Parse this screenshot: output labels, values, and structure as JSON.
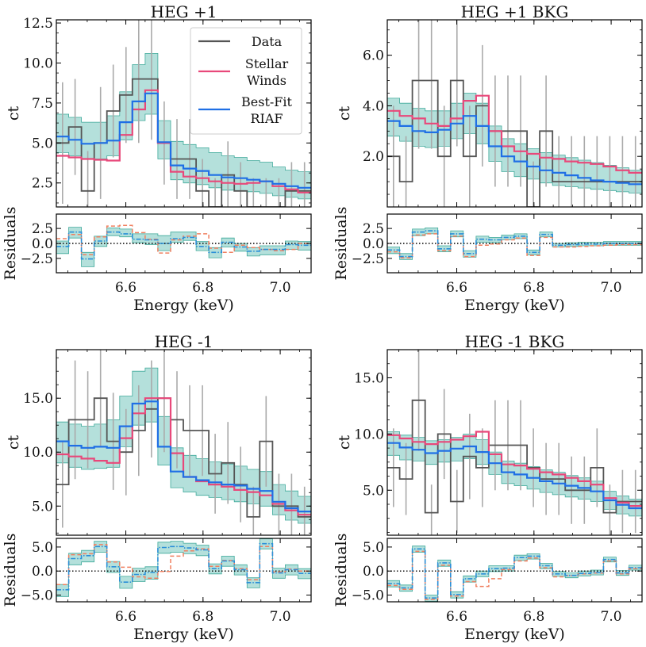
{
  "chart_data": [
    {
      "type": "line",
      "title": "HEG +1",
      "xlabel": "Energy (keV)",
      "ylabel": "ct",
      "residuals_ylabel": "Residuals",
      "xlim": [
        6.42,
        7.08
      ],
      "ylim": [
        1.0,
        12.7
      ],
      "residuals_ylim": [
        -4.9,
        4.9
      ],
      "xticks": [
        6.6,
        6.8,
        7.0
      ],
      "yticks": [
        2.5,
        5.0,
        7.5,
        10.0,
        12.5
      ],
      "yticklabels": [
        "2.5",
        "5.0",
        "7.5",
        "10.0",
        "12.5"
      ],
      "residuals_yticks": [
        -2.5,
        0.0,
        2.5
      ],
      "residuals_yticklabels": [
        "−2.5",
        "0.0",
        "2.5"
      ],
      "bin_edges": [
        6.42,
        6.452,
        6.485,
        6.518,
        6.551,
        6.584,
        6.617,
        6.65,
        6.683,
        6.716,
        6.749,
        6.782,
        6.815,
        6.848,
        6.881,
        6.914,
        6.947,
        6.98,
        7.013,
        7.046,
        7.08
      ],
      "data_counts": [
        5,
        6,
        2,
        5,
        7,
        8,
        9,
        9,
        5,
        4,
        4,
        2,
        1,
        3,
        2,
        1,
        1,
        1,
        2,
        2
      ],
      "data_errors": [
        3.8,
        3.0,
        2.5,
        3.5,
        2.9,
        3.0,
        4.0,
        3.8,
        2.6,
        2.5,
        2.5,
        2.0,
        1.8,
        2.1,
        1.8,
        1.8,
        1.8,
        1.8,
        1.8,
        1.8
      ],
      "stellar_winds": [
        4.2,
        4.1,
        4.0,
        3.95,
        3.9,
        5.5,
        7.1,
        8.3,
        5.0,
        3.2,
        2.9,
        2.8,
        2.6,
        2.5,
        2.45,
        2.5,
        2.6,
        2.3,
        2.1,
        1.9
      ],
      "riaf": [
        5.4,
        5.2,
        4.95,
        5.0,
        5.15,
        6.3,
        7.6,
        8.1,
        5.05,
        3.6,
        3.4,
        3.25,
        3.0,
        2.85,
        2.8,
        2.7,
        2.6,
        2.45,
        2.3,
        2.2
      ],
      "band_lower": [
        4.4,
        4.2,
        4.0,
        4.0,
        4.2,
        5.2,
        6.4,
        6.8,
        4.0,
        2.7,
        2.5,
        2.4,
        2.2,
        2.05,
        2.0,
        1.95,
        1.85,
        1.7,
        1.6,
        1.5
      ],
      "band_upper": [
        6.8,
        6.6,
        6.3,
        6.3,
        6.7,
        8.2,
        9.9,
        10.6,
        6.4,
        5.1,
        4.9,
        4.7,
        4.4,
        4.2,
        4.1,
        3.9,
        3.8,
        3.5,
        3.3,
        3.2
      ],
      "res_riaf": [
        -0.5,
        1.9,
        -2.6,
        0.4,
        1.9,
        1.6,
        0.7,
        0.6,
        0.0,
        0.8,
        1.0,
        -0.5,
        -1.5,
        0.2,
        -0.6,
        -1.3,
        -1.0,
        -1.0,
        -0.2,
        -0.3
      ],
      "res_winds": [
        0.8,
        1.5,
        -1.9,
        1.1,
        2.9,
        3.0,
        1.8,
        0.7,
        -1.6,
        0.6,
        1.2,
        1.6,
        -0.8,
        -1.5,
        -0.3,
        -0.7,
        -1.0,
        -1.2,
        -1.0,
        0.0
      ],
      "res_band_lower": [
        -1.2,
        -1.0,
        -1.3,
        -0.9,
        -0.6,
        -0.5,
        -0.6,
        -0.8,
        -1.2,
        -0.6,
        -0.5,
        -0.7,
        -0.9,
        -0.8,
        -0.7,
        -0.8,
        -0.9,
        -0.9,
        -0.8,
        -0.8
      ],
      "res_band_upper": [
        0.9,
        0.8,
        1.1,
        0.8,
        0.7,
        0.8,
        0.9,
        1.0,
        1.3,
        1.1,
        0.9,
        0.8,
        0.8,
        0.7,
        0.6,
        0.6,
        0.6,
        0.6,
        0.6,
        0.6
      ],
      "legend": {
        "position": "top-right",
        "entries": [
          "Data",
          "Stellar\nWinds",
          "Best-Fit\nRIAF"
        ]
      }
    },
    {
      "type": "line",
      "title": "HEG +1 BKG",
      "xlabel": "Energy (keV)",
      "ylabel": "ct",
      "residuals_ylabel": "Residuals",
      "xlim": [
        6.42,
        7.08
      ],
      "ylim": [
        0.0,
        7.4
      ],
      "residuals_ylim": [
        -4.9,
        4.9
      ],
      "xticks": [
        6.6,
        6.8,
        7.0
      ],
      "yticks": [
        2.0,
        4.0,
        6.0
      ],
      "yticklabels": [
        "2.0",
        "4.0",
        "6.0"
      ],
      "residuals_yticks": [
        -2.5,
        0.0,
        2.5
      ],
      "residuals_yticklabels": [
        "−2.5",
        "0.0",
        "2.5"
      ],
      "bin_edges": [
        6.42,
        6.452,
        6.485,
        6.518,
        6.551,
        6.584,
        6.617,
        6.65,
        6.683,
        6.716,
        6.749,
        6.782,
        6.815,
        6.848,
        6.881,
        6.914,
        6.947,
        6.98,
        7.013,
        7.046,
        7.08
      ],
      "data_counts": [
        2,
        1,
        5,
        5,
        2,
        5,
        2,
        4,
        3,
        3,
        3,
        0,
        3,
        1,
        1,
        1,
        1,
        1,
        1,
        1
      ],
      "data_errors": [
        2.0,
        1.8,
        2.7,
        2.7,
        2.0,
        2.6,
        2.0,
        2.4,
        2.2,
        2.2,
        2.2,
        1.8,
        2.2,
        1.8,
        1.8,
        1.8,
        1.8,
        1.8,
        1.8,
        1.8
      ],
      "stellar_winds": [
        3.8,
        3.6,
        3.5,
        3.3,
        3.2,
        3.5,
        4.2,
        4.4,
        3.0,
        2.4,
        2.2,
        2.1,
        1.95,
        1.9,
        1.8,
        1.75,
        1.7,
        1.6,
        1.45,
        1.35
      ],
      "riaf": [
        3.4,
        3.2,
        3.0,
        2.95,
        3.05,
        3.3,
        3.6,
        3.2,
        2.4,
        2.0,
        1.8,
        1.6,
        1.45,
        1.35,
        1.25,
        1.15,
        1.05,
        1.0,
        0.95,
        0.9
      ],
      "band_lower": [
        2.8,
        2.6,
        2.4,
        2.35,
        2.4,
        2.7,
        2.9,
        2.5,
        1.8,
        1.4,
        1.2,
        1.1,
        0.95,
        0.85,
        0.8,
        0.75,
        0.7,
        0.65,
        0.6,
        0.55
      ],
      "band_upper": [
        4.3,
        4.1,
        3.9,
        3.8,
        3.8,
        4.1,
        4.5,
        4.1,
        3.2,
        2.7,
        2.5,
        2.3,
        2.15,
        2.05,
        1.95,
        1.85,
        1.75,
        1.65,
        1.55,
        1.45
      ],
      "res_riaf": [
        -1.1,
        -2.2,
        1.9,
        2.1,
        -0.9,
        1.6,
        -1.7,
        0.7,
        0.6,
        1.0,
        1.2,
        -1.5,
        1.5,
        -0.3,
        -0.2,
        -0.1,
        -0.1,
        0.0,
        0.0,
        0.0
      ],
      "res_winds": [
        -1.4,
        -2.4,
        1.4,
        1.6,
        -1.2,
        1.2,
        -2.2,
        -0.3,
        -0.1,
        0.6,
        0.9,
        -2.0,
        1.0,
        -0.6,
        -0.6,
        -0.5,
        -0.4,
        -0.3,
        -0.2,
        -0.2
      ],
      "res_band_lower": [
        -0.6,
        -0.5,
        -0.6,
        -0.5,
        -0.5,
        -0.5,
        -0.6,
        -0.5,
        -0.5,
        -0.4,
        -0.4,
        -0.4,
        -0.4,
        -0.3,
        -0.3,
        -0.3,
        -0.3,
        -0.3,
        -0.3,
        -0.3
      ],
      "res_band_upper": [
        0.5,
        0.5,
        0.5,
        0.5,
        0.5,
        0.5,
        0.5,
        0.5,
        0.4,
        0.4,
        0.4,
        0.4,
        0.4,
        0.3,
        0.3,
        0.3,
        0.3,
        0.3,
        0.3,
        0.3
      ]
    },
    {
      "type": "line",
      "title": "HEG -1",
      "xlabel": "Energy (keV)",
      "ylabel": "ct",
      "residuals_ylabel": "Residuals",
      "xlim": [
        6.42,
        7.08
      ],
      "ylim": [
        2.3,
        19.5
      ],
      "residuals_ylim": [
        -6.4,
        6.8
      ],
      "xticks": [
        6.6,
        6.8,
        7.0
      ],
      "yticks": [
        5.0,
        10.0,
        15.0
      ],
      "yticklabels": [
        "5.0",
        "10.0",
        "15.0"
      ],
      "residuals_yticks": [
        -5.0,
        0.0,
        5.0
      ],
      "residuals_yticklabels": [
        "−5.0",
        "0.0",
        "5.0"
      ],
      "bin_edges": [
        6.42,
        6.452,
        6.485,
        6.518,
        6.551,
        6.584,
        6.617,
        6.65,
        6.683,
        6.716,
        6.749,
        6.782,
        6.815,
        6.848,
        6.881,
        6.914,
        6.947,
        6.98,
        7.013,
        7.046,
        7.08
      ],
      "data_counts": [
        7,
        13,
        13,
        15,
        11,
        10,
        12,
        14,
        15,
        13,
        12,
        12,
        8,
        9,
        7,
        4,
        11,
        5,
        5,
        4
      ],
      "data_errors": [
        4.0,
        5.5,
        4.5,
        4.5,
        4.5,
        4.0,
        4.2,
        4.5,
        5.0,
        4.5,
        4.2,
        4.2,
        3.7,
        3.8,
        3.5,
        2.8,
        4.2,
        3.0,
        3.0,
        2.8
      ],
      "stellar_winds": [
        9.8,
        9.6,
        9.4,
        9.2,
        9.0,
        11.3,
        13.6,
        15.0,
        15.0,
        9.9,
        7.7,
        7.3,
        7.0,
        6.8,
        6.5,
        6.3,
        6.0,
        5.2,
        4.6,
        4.2
      ],
      "riaf": [
        11.0,
        10.6,
        10.4,
        10.5,
        10.4,
        12.4,
        14.5,
        14.7,
        10.5,
        8.2,
        7.7,
        7.4,
        7.2,
        7.0,
        6.9,
        6.6,
        6.4,
        5.4,
        4.8,
        4.5
      ],
      "band_lower": [
        9.0,
        8.6,
        8.4,
        8.5,
        8.6,
        10.5,
        12.5,
        12.8,
        8.8,
        6.7,
        6.3,
        6.0,
        5.8,
        5.6,
        5.4,
        5.2,
        5.0,
        4.2,
        3.7,
        3.4
      ],
      "band_upper": [
        12.8,
        12.6,
        12.4,
        12.6,
        13.0,
        15.2,
        17.5,
        17.8,
        13.3,
        10.4,
        9.7,
        9.4,
        9.1,
        8.9,
        8.7,
        8.4,
        8.2,
        7.0,
        6.4,
        5.9
      ],
      "res_riaf": [
        -3.9,
        2.6,
        3.2,
        5.1,
        0.9,
        -2.3,
        -0.7,
        -0.3,
        4.9,
        5.1,
        4.8,
        4.4,
        0.5,
        2.1,
        0.3,
        -2.4,
        5.7,
        -0.4,
        0.3,
        -0.5
      ],
      "res_winds": [
        -2.8,
        3.4,
        3.6,
        5.5,
        1.9,
        0.8,
        -1.2,
        -1.5,
        -0.1,
        3.1,
        4.2,
        4.6,
        1.0,
        2.2,
        0.5,
        -1.8,
        5.1,
        -0.2,
        0.4,
        0.0
      ],
      "res_band_lower": [
        -1.4,
        -1.3,
        -1.3,
        -1.2,
        -1.2,
        -1.3,
        -1.5,
        -1.4,
        -1.2,
        -1.2,
        -1.2,
        -1.2,
        -1.1,
        -1.1,
        -1.1,
        -1.1,
        -1.1,
        -1.1,
        -1.1,
        -1.1
      ],
      "res_band_upper": [
        1.1,
        1.1,
        1.1,
        1.1,
        1.1,
        1.2,
        1.3,
        1.2,
        1.1,
        1.1,
        1.0,
        1.0,
        1.0,
        1.0,
        1.0,
        1.0,
        1.0,
        1.0,
        1.0,
        1.0
      ]
    },
    {
      "type": "line",
      "title": "HEG -1 BKG",
      "xlabel": "Energy (keV)",
      "ylabel": "ct",
      "residuals_ylabel": "Residuals",
      "xlim": [
        6.42,
        7.08
      ],
      "ylim": [
        1.0,
        17.5
      ],
      "residuals_ylim": [
        -6.4,
        6.8
      ],
      "xticks": [
        6.6,
        6.8,
        7.0
      ],
      "yticks": [
        5.0,
        10.0,
        15.0
      ],
      "yticklabels": [
        "5.0",
        "10.0",
        "15.0"
      ],
      "residuals_yticks": [
        -5.0,
        0.0,
        5.0
      ],
      "residuals_yticklabels": [
        "−5.0",
        "0.0",
        "5.0"
      ],
      "bin_edges": [
        6.42,
        6.452,
        6.485,
        6.518,
        6.551,
        6.584,
        6.617,
        6.65,
        6.683,
        6.716,
        6.749,
        6.782,
        6.815,
        6.848,
        6.881,
        6.914,
        6.947,
        6.98,
        7.013,
        7.046,
        7.08
      ],
      "data_counts": [
        7,
        6,
        13,
        3,
        10,
        4,
        8,
        7,
        9,
        9,
        9,
        7,
        6,
        6,
        5,
        5,
        7,
        3,
        4,
        4
      ],
      "data_errors": [
        3.5,
        3.2,
        4.5,
        2.5,
        4.0,
        2.8,
        3.8,
        3.5,
        4.0,
        4.0,
        4.0,
        3.5,
        3.2,
        3.2,
        3.0,
        3.0,
        3.5,
        2.5,
        2.8,
        2.8
      ],
      "stellar_winds": [
        9.9,
        9.6,
        9.3,
        9.1,
        9.3,
        9.5,
        9.8,
        10.2,
        8.2,
        7.3,
        7.2,
        6.9,
        6.6,
        6.4,
        6.1,
        5.8,
        5.5,
        4.3,
        3.9,
        3.6
      ],
      "riaf": [
        9.2,
        8.8,
        8.6,
        8.3,
        8.5,
        8.7,
        8.9,
        8.4,
        7.4,
        6.6,
        6.4,
        6.1,
        5.8,
        5.6,
        5.4,
        5.2,
        4.9,
        4.1,
        3.7,
        3.4
      ],
      "band_lower": [
        8.1,
        7.7,
        7.6,
        7.3,
        7.5,
        7.6,
        7.8,
        7.3,
        6.4,
        5.6,
        5.4,
        5.1,
        4.8,
        4.6,
        4.4,
        4.2,
        4.0,
        3.3,
        2.9,
        2.7
      ],
      "band_upper": [
        10.2,
        9.9,
        9.7,
        9.4,
        9.5,
        9.7,
        10.0,
        9.5,
        8.4,
        7.6,
        7.4,
        7.1,
        6.8,
        6.6,
        6.3,
        6.1,
        5.8,
        4.9,
        4.5,
        4.2
      ],
      "res_riaf": [
        -2.6,
        -3.5,
        4.6,
        -5.6,
        1.7,
        -4.9,
        -1.6,
        -0.6,
        0.5,
        0.6,
        2.8,
        3.1,
        1.1,
        -0.6,
        -0.9,
        -0.5,
        -0.3,
        2.4,
        -0.4,
        0.7
      ],
      "res_winds": [
        -3.0,
        -3.8,
        4.1,
        -5.9,
        1.2,
        -5.2,
        -2.2,
        -3.2,
        -1.6,
        0.3,
        2.1,
        2.7,
        0.7,
        -1.2,
        -0.9,
        -0.6,
        -0.4,
        2.1,
        -0.6,
        0.5
      ],
      "res_band_lower": [
        -0.7,
        -0.7,
        -0.7,
        -0.7,
        -0.7,
        -0.7,
        -0.7,
        -0.6,
        -0.6,
        -0.6,
        -0.6,
        -0.6,
        -0.6,
        -0.5,
        -0.5,
        -0.5,
        -0.5,
        -0.5,
        -0.5,
        -0.5
      ],
      "res_band_upper": [
        0.6,
        0.6,
        0.6,
        0.6,
        0.6,
        0.6,
        0.6,
        0.6,
        0.6,
        0.5,
        0.5,
        0.5,
        0.5,
        0.5,
        0.5,
        0.5,
        0.5,
        0.5,
        0.5,
        0.5
      ]
    }
  ],
  "style": {
    "data_color": "#555555",
    "errorbar_color": "#aaaaaa",
    "winds_color": "#e8487a",
    "riaf_color": "#1f6fe5",
    "band_fill": "#76c7bd",
    "band_edge": "#3fa99a",
    "residual_winds_color": "#f08060",
    "residual_riaf_color": "#2b8fd8",
    "zero_line_color": "#000000"
  }
}
